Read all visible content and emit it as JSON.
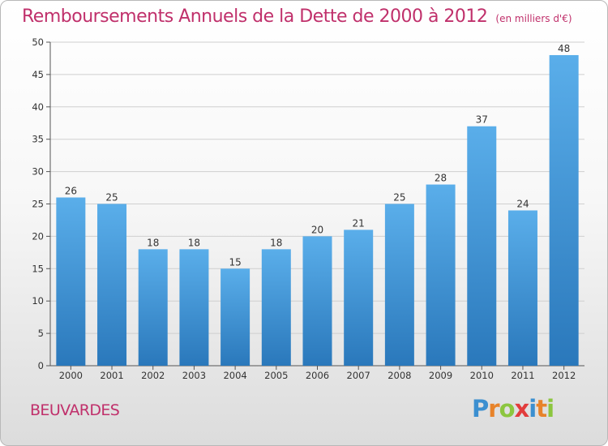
{
  "title": "Remboursements Annuels de la Dette de 2000 à 2012",
  "unit": "(en milliers d'€)",
  "commune": "BEUVARDES",
  "logo": {
    "letters": [
      "P",
      "r",
      "o",
      "x",
      "i",
      "t",
      "i"
    ],
    "colors": [
      "#3b8fd0",
      "#e8832a",
      "#8cc63f",
      "#e23c3c",
      "#3b8fd0",
      "#e8832a",
      "#8cc63f"
    ]
  },
  "colors": {
    "title": "#c0306b",
    "bar_top": "#5aaeea",
    "bar_bottom": "#2a78bb",
    "grid": "#cfcfcf"
  },
  "chart_data": {
    "type": "bar",
    "title": "Remboursements Annuels de la Dette de 2000 à 2012",
    "xlabel": "",
    "ylabel": "",
    "categories": [
      "2000",
      "2001",
      "2002",
      "2003",
      "2004",
      "2005",
      "2006",
      "2007",
      "2008",
      "2009",
      "2010",
      "2011",
      "2012"
    ],
    "values": [
      26,
      25,
      18,
      18,
      15,
      18,
      20,
      21,
      25,
      28,
      37,
      24,
      48
    ],
    "ylim": [
      0,
      50
    ],
    "yticks": [
      0,
      5,
      10,
      15,
      20,
      25,
      30,
      35,
      40,
      45,
      50
    ],
    "grid": true
  }
}
